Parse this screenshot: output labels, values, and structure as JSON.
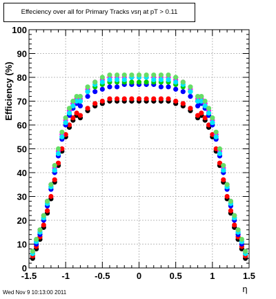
{
  "chart_data": {
    "type": "scatter",
    "title": "Effeciency over all for Primary Tracks vsη at pT > 0.11",
    "xlabel": "η",
    "ylabel": "Efficiency (%)",
    "xlim": [
      -1.5,
      1.5
    ],
    "ylim": [
      0,
      100
    ],
    "x_ticks": [
      "-1.5",
      "-1",
      "-0.5",
      "0",
      "0.5",
      "1",
      "1.5"
    ],
    "y_ticks": [
      "0",
      "10",
      "20",
      "30",
      "40",
      "50",
      "60",
      "70",
      "80",
      "90",
      "100"
    ],
    "grid": true,
    "legend": "none",
    "plateau_x": [
      -0.8,
      -0.7,
      -0.6,
      -0.5,
      -0.4,
      -0.3,
      -0.2,
      -0.1,
      0.0,
      0.1,
      0.2,
      0.3,
      0.4,
      0.5,
      0.6,
      0.7,
      0.8
    ],
    "edge_x": [
      -1.45,
      -1.4,
      -1.35,
      -1.3,
      -1.25,
      -1.2,
      -1.15,
      -1.1,
      -1.05,
      -1.0,
      -0.95,
      -0.9,
      -0.85,
      0.85,
      0.9,
      0.95,
      1.0,
      1.05,
      1.1,
      1.15,
      1.2,
      1.25,
      1.3,
      1.35,
      1.4,
      1.45
    ],
    "series": [
      {
        "color": "#000000",
        "plateau_y": [
          63,
          66,
          68,
          69,
          70,
          70,
          70,
          70,
          70,
          70,
          70,
          70,
          70,
          69,
          68,
          66,
          63
        ],
        "edge_y": [
          4,
          8,
          12,
          17,
          23,
          29,
          36,
          43,
          49,
          55,
          59,
          62,
          64,
          64,
          62,
          59,
          55,
          49,
          43,
          36,
          29,
          23,
          17,
          12,
          8,
          4
        ]
      },
      {
        "color": "#ff0000",
        "plateau_y": [
          64,
          67,
          69,
          70,
          71,
          71,
          71,
          71,
          71,
          71,
          71,
          71,
          71,
          70,
          69,
          67,
          64
        ],
        "edge_y": [
          5,
          9,
          13,
          18,
          24,
          30,
          37,
          44,
          50,
          56,
          60,
          63,
          65,
          65,
          63,
          60,
          56,
          50,
          44,
          37,
          30,
          24,
          18,
          13,
          9,
          5
        ]
      },
      {
        "color": "#0000ff",
        "plateau_y": [
          68,
          72,
          74,
          75,
          76,
          76,
          77,
          77,
          77,
          77,
          77,
          76,
          76,
          75,
          74,
          72,
          68
        ],
        "edge_y": [
          6,
          10,
          14,
          20,
          26,
          33,
          40,
          47,
          54,
          60,
          64,
          67,
          69,
          69,
          67,
          64,
          60,
          54,
          47,
          40,
          33,
          26,
          20,
          14,
          10,
          6
        ]
      },
      {
        "color": "#00cc00",
        "plateau_y": [
          70,
          74,
          76,
          77,
          78,
          78,
          78,
          78,
          78,
          78,
          78,
          78,
          78,
          77,
          76,
          74,
          70
        ],
        "edge_y": [
          6,
          11,
          15,
          21,
          27,
          34,
          41,
          48,
          55,
          61,
          65,
          68,
          70,
          70,
          68,
          65,
          61,
          55,
          48,
          41,
          34,
          27,
          21,
          15,
          11,
          6
        ]
      },
      {
        "color": "#ff00ff",
        "plateau_y": [
          71,
          75,
          78,
          79,
          80,
          80,
          80,
          80,
          80,
          80,
          80,
          80,
          80,
          79,
          78,
          75,
          71
        ],
        "edge_y": [
          7,
          11,
          16,
          22,
          28,
          35,
          42,
          49,
          56,
          62,
          66,
          69,
          71,
          71,
          69,
          66,
          62,
          56,
          49,
          42,
          35,
          28,
          22,
          16,
          11,
          7
        ]
      },
      {
        "color": "#00e5ff",
        "plateau_y": [
          70,
          74,
          77,
          78,
          79,
          79,
          79,
          80,
          80,
          80,
          79,
          79,
          79,
          78,
          77,
          74,
          70
        ],
        "edge_y": [
          6,
          11,
          15,
          21,
          27,
          34,
          41,
          48,
          55,
          61,
          65,
          68,
          70,
          70,
          68,
          65,
          61,
          55,
          48,
          41,
          34,
          27,
          21,
          15,
          11,
          6
        ]
      },
      {
        "color": "#66dd66",
        "plateau_y": [
          72,
          76,
          78,
          80,
          81,
          81,
          81,
          81,
          81,
          81,
          81,
          81,
          81,
          80,
          78,
          76,
          72
        ],
        "edge_y": [
          7,
          12,
          16,
          22,
          28,
          35,
          43,
          50,
          57,
          63,
          67,
          70,
          72,
          72,
          70,
          67,
          63,
          57,
          50,
          43,
          35,
          28,
          22,
          16,
          12,
          7
        ]
      }
    ]
  },
  "footer": {
    "timestamp": "Wed Nov  9 10:13:00 2011"
  }
}
